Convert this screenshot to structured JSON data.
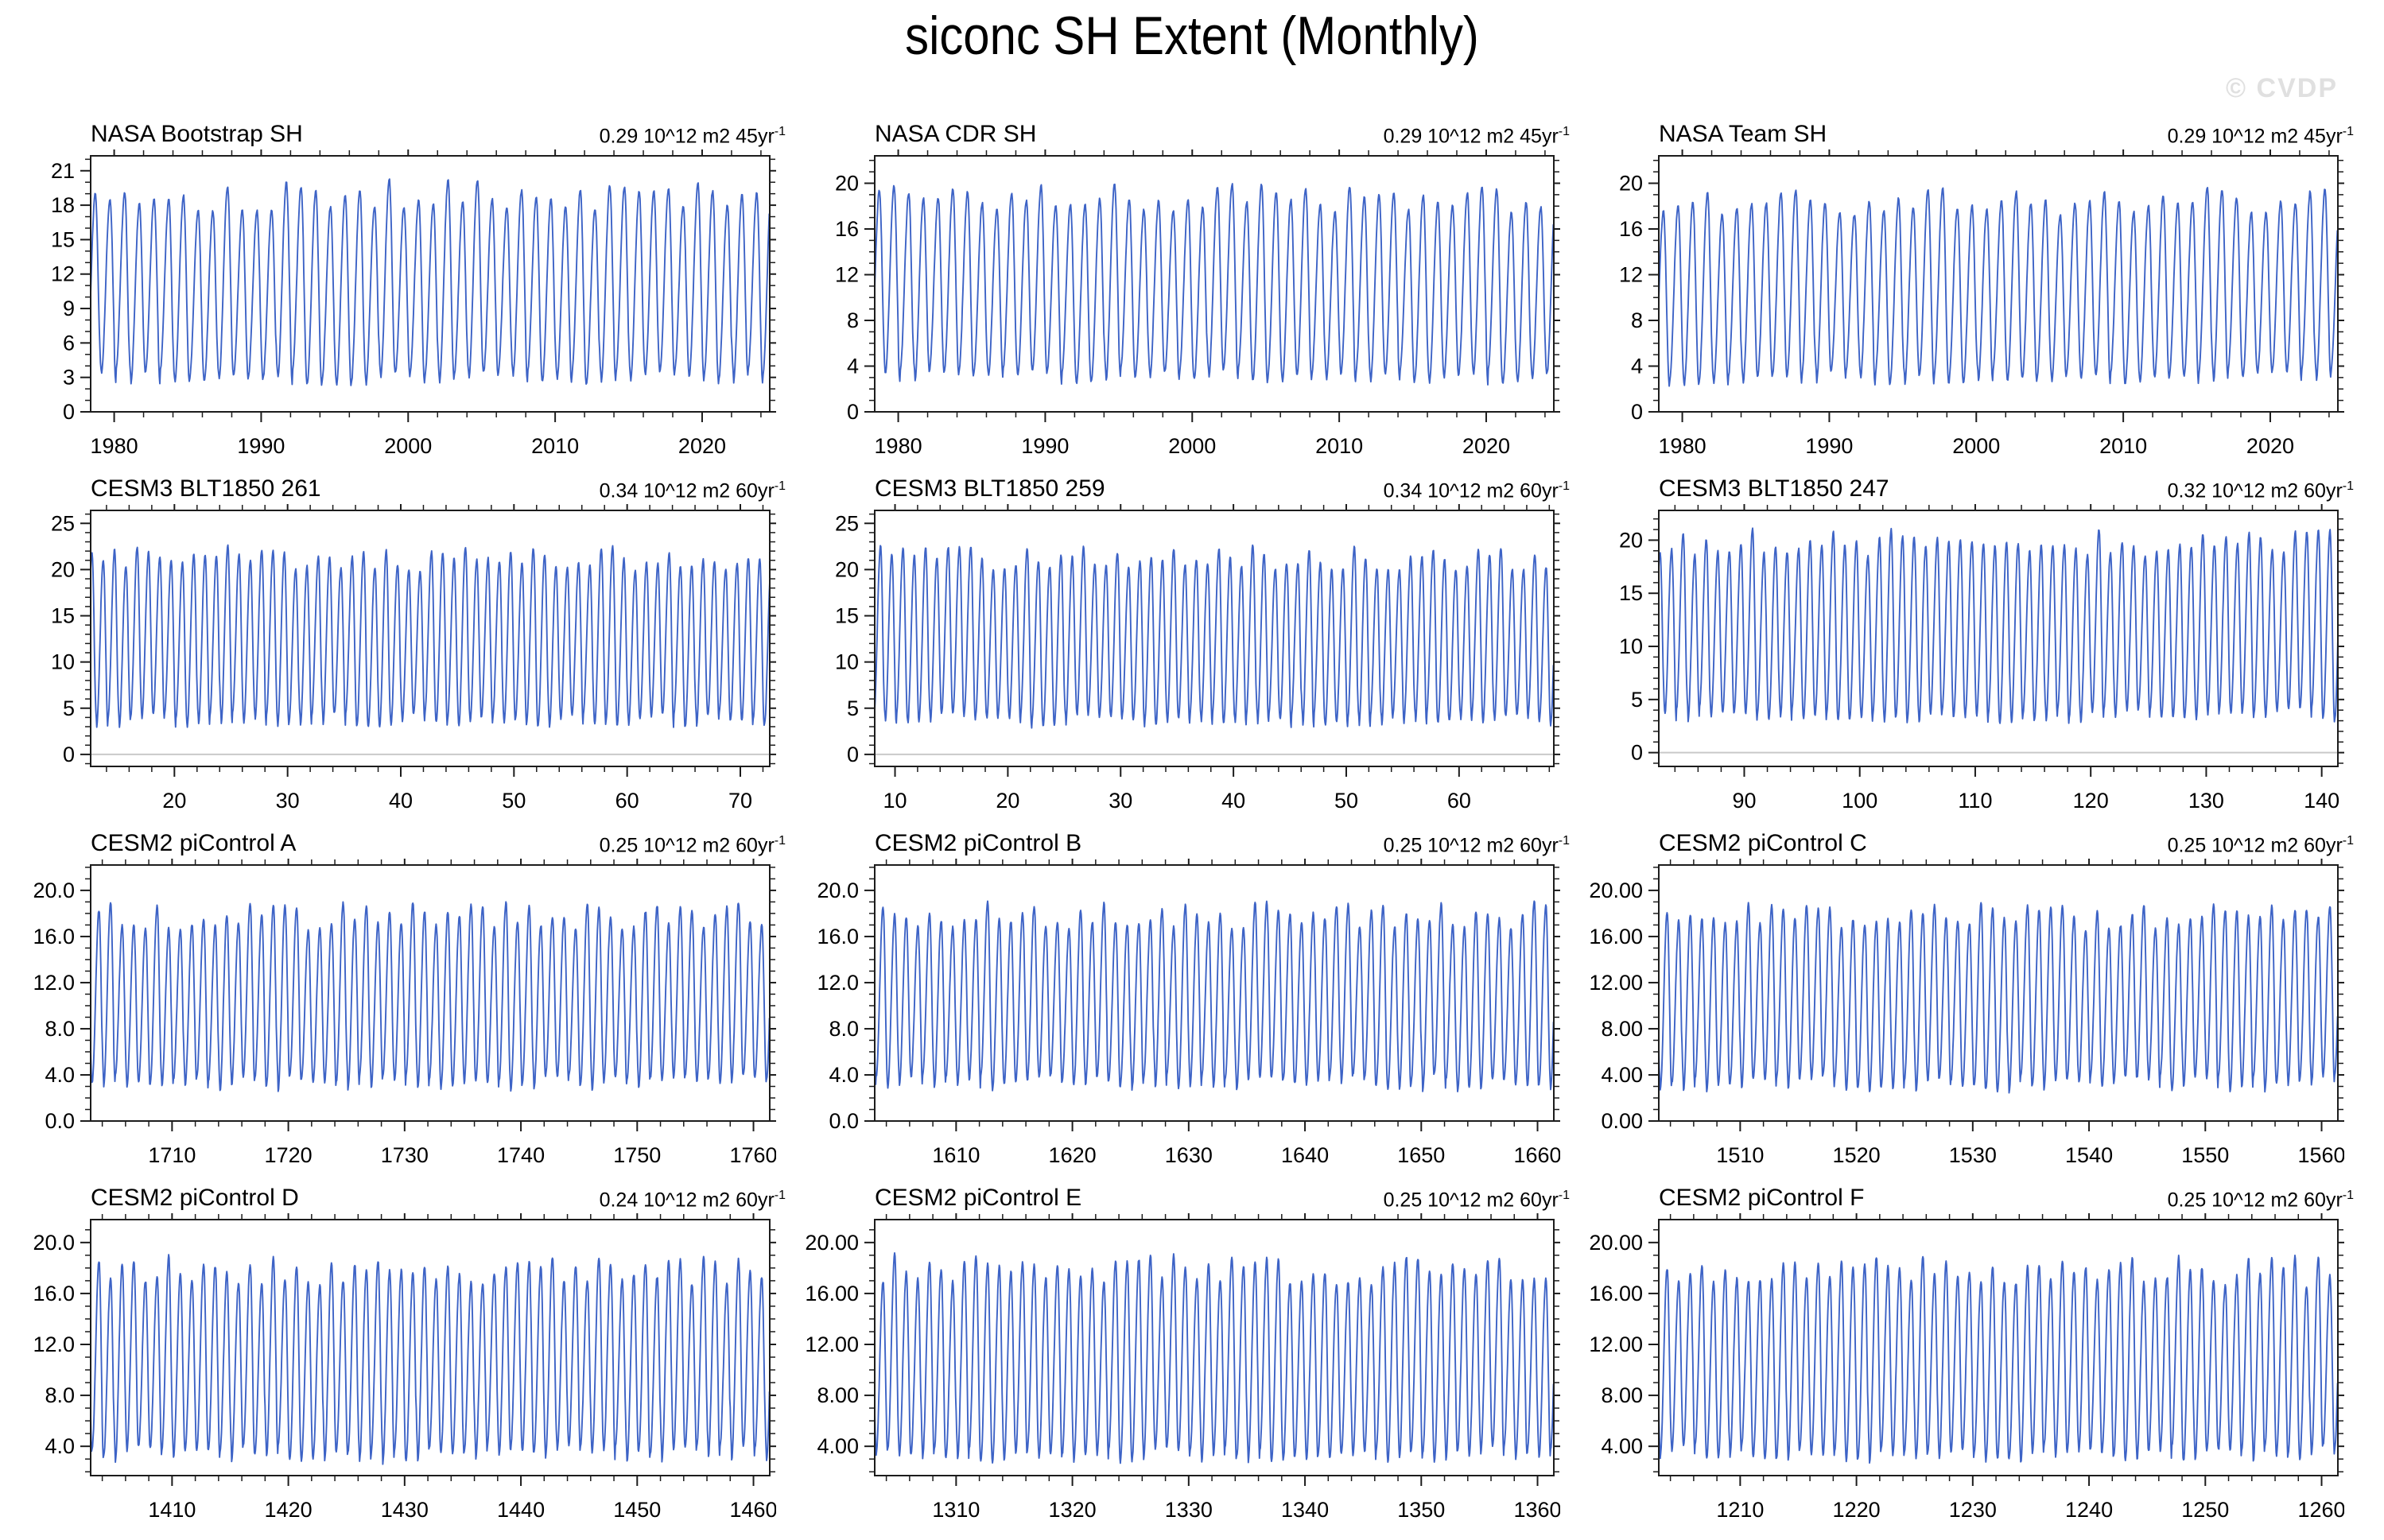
{
  "page": {
    "title": "siconc SH Extent (Monthly)",
    "watermark": "© CVDP"
  },
  "colors": {
    "line": "#3d63c6",
    "axis": "#1c1c1c",
    "zero_line": "#c9c9c9",
    "watermark": "#e0e0e0"
  },
  "chart_data": {
    "type": "line",
    "title": "siconc SH Extent (Monthly)",
    "subtitle": "Monthly Southern Hemisphere sea ice extent seasonal cycle, 12 panels (observations and model runs)",
    "y_unit": "10^12 m2",
    "legend": "none",
    "grid": "off",
    "panels": [
      {
        "title": "NASA Bootstrap SH",
        "trend": {
          "text": "0.29 10^12 m2 45yr",
          "sup": "-1"
        },
        "x": {
          "min": 1978.4,
          "max": 2024.6,
          "ticks": [
            1980,
            1990,
            2000,
            2010,
            2020
          ],
          "tick_labels": [
            "1980",
            "1990",
            "2000",
            "2010",
            "2020"
          ],
          "minor_step": 2
        },
        "y": {
          "min": 0,
          "max": 22.3,
          "ticks": [
            0,
            3,
            6,
            9,
            12,
            15,
            18,
            21
          ],
          "tick_labels": [
            "0",
            "3",
            "6",
            "9",
            "12",
            "15",
            "18",
            "21"
          ],
          "minor_step": 1
        },
        "zero_line": false,
        "series": {
          "name": "siconc SH extent",
          "seasonal_min": 3.0,
          "seasonal_max": 18.9,
          "peak_jitter": 1.5,
          "trough_jitter": 0.7,
          "seed": 101
        }
      },
      {
        "title": "NASA CDR SH",
        "trend": {
          "text": "0.29 10^12 m2 45yr",
          "sup": "-1"
        },
        "x": {
          "min": 1978.4,
          "max": 2024.6,
          "ticks": [
            1980,
            1990,
            2000,
            2010,
            2020
          ],
          "tick_labels": [
            "1980",
            "1990",
            "2000",
            "2010",
            "2020"
          ],
          "minor_step": 2
        },
        "y": {
          "min": 0,
          "max": 22.4,
          "ticks": [
            0,
            4,
            8,
            12,
            16,
            20
          ],
          "tick_labels": [
            "0",
            "4",
            "8",
            "12",
            "16",
            "20"
          ],
          "minor_step": 1
        },
        "zero_line": false,
        "series": {
          "name": "siconc SH extent",
          "seasonal_min": 3.1,
          "seasonal_max": 18.7,
          "peak_jitter": 1.3,
          "trough_jitter": 0.7,
          "seed": 102
        }
      },
      {
        "title": "NASA Team SH",
        "trend": {
          "text": "0.29 10^12 m2 45yr",
          "sup": "-1"
        },
        "x": {
          "min": 1978.4,
          "max": 2024.6,
          "ticks": [
            1980,
            1990,
            2000,
            2010,
            2020
          ],
          "tick_labels": [
            "1980",
            "1990",
            "2000",
            "2010",
            "2020"
          ],
          "minor_step": 2
        },
        "y": {
          "min": 0,
          "max": 22.4,
          "ticks": [
            0,
            4,
            8,
            12,
            16,
            20
          ],
          "tick_labels": [
            "0",
            "4",
            "8",
            "12",
            "16",
            "20"
          ],
          "minor_step": 1
        },
        "zero_line": false,
        "series": {
          "name": "siconc SH extent",
          "seasonal_min": 3.0,
          "seasonal_max": 18.5,
          "peak_jitter": 1.3,
          "trough_jitter": 0.7,
          "seed": 103
        }
      },
      {
        "title": "CESM3 BLT1850 261",
        "trend": {
          "text": "0.34 10^12 m2 60yr",
          "sup": "-1"
        },
        "x": {
          "min": 12.6,
          "max": 72.6,
          "ticks": [
            20,
            30,
            40,
            50,
            60,
            70
          ],
          "tick_labels": [
            "20",
            "30",
            "40",
            "50",
            "60",
            "70"
          ],
          "minor_step": 2
        },
        "y": {
          "min": -1.3,
          "max": 26.4,
          "ticks": [
            0,
            5,
            10,
            15,
            20,
            25
          ],
          "tick_labels": [
            "0",
            "5",
            "10",
            "15",
            "20",
            "25"
          ],
          "minor_step": 1
        },
        "zero_line": true,
        "series": {
          "name": "siconc SH extent",
          "seasonal_min": 3.7,
          "seasonal_max": 21.2,
          "peak_jitter": 1.4,
          "trough_jitter": 0.8,
          "seed": 104
        }
      },
      {
        "title": "CESM3 BLT1850 259",
        "trend": {
          "text": "0.34 10^12 m2 60yr",
          "sup": "-1"
        },
        "x": {
          "min": 8.2,
          "max": 68.4,
          "ticks": [
            10,
            20,
            30,
            40,
            50,
            60
          ],
          "tick_labels": [
            "10",
            "20",
            "30",
            "40",
            "50",
            "60"
          ],
          "minor_step": 2
        },
        "y": {
          "min": -1.3,
          "max": 26.4,
          "ticks": [
            0,
            5,
            10,
            15,
            20,
            25
          ],
          "tick_labels": [
            "0",
            "5",
            "10",
            "15",
            "20",
            "25"
          ],
          "minor_step": 1
        },
        "zero_line": true,
        "series": {
          "name": "siconc SH extent",
          "seasonal_min": 3.7,
          "seasonal_max": 21.3,
          "peak_jitter": 1.4,
          "trough_jitter": 0.8,
          "seed": 105
        }
      },
      {
        "title": "CESM3 BLT1850 247",
        "trend": {
          "text": "0.32 10^12 m2 60yr",
          "sup": "-1"
        },
        "x": {
          "min": 82.6,
          "max": 141.4,
          "ticks": [
            90,
            100,
            110,
            120,
            130,
            140
          ],
          "tick_labels": [
            "90",
            "100",
            "110",
            "120",
            "130",
            "140"
          ],
          "minor_step": 2
        },
        "y": {
          "min": -1.3,
          "max": 22.8,
          "ticks": [
            0,
            5,
            10,
            15,
            20
          ],
          "tick_labels": [
            "0",
            "5",
            "10",
            "15",
            "20"
          ],
          "minor_step": 1
        },
        "zero_line": true,
        "series": {
          "name": "siconc SH extent",
          "seasonal_min": 3.5,
          "seasonal_max": 19.8,
          "peak_jitter": 1.3,
          "trough_jitter": 0.8,
          "seed": 106
        }
      },
      {
        "title": "CESM2 piControl A",
        "trend": {
          "text": "0.25 10^12 m2 60yr",
          "sup": "-1"
        },
        "x": {
          "min": 1703,
          "max": 1761.4,
          "ticks": [
            1710,
            1720,
            1730,
            1740,
            1750,
            1760
          ],
          "tick_labels": [
            "1710",
            "1720",
            "1730",
            "1740",
            "1750",
            "1760"
          ],
          "minor_step": 2
        },
        "y": {
          "min": 0,
          "max": 22.2,
          "ticks": [
            0,
            4,
            8,
            12,
            16,
            20
          ],
          "tick_labels": [
            "0.0",
            "4.0",
            "8.0",
            "12.0",
            "16.0",
            "20.0"
          ],
          "minor_step": 1
        },
        "zero_line": false,
        "series": {
          "name": "siconc SH extent",
          "seasonal_min": 3.3,
          "seasonal_max": 17.8,
          "peak_jitter": 1.2,
          "trough_jitter": 0.8,
          "seed": 107
        }
      },
      {
        "title": "CESM2 piControl B",
        "trend": {
          "text": "0.25 10^12 m2 60yr",
          "sup": "-1"
        },
        "x": {
          "min": 1603,
          "max": 1661.4,
          "ticks": [
            1610,
            1620,
            1630,
            1640,
            1650,
            1660
          ],
          "tick_labels": [
            "1610",
            "1620",
            "1630",
            "1640",
            "1650",
            "1660"
          ],
          "minor_step": 2
        },
        "y": {
          "min": 0,
          "max": 22.2,
          "ticks": [
            0,
            4,
            8,
            12,
            16,
            20
          ],
          "tick_labels": [
            "0.0",
            "4.0",
            "8.0",
            "12.0",
            "16.0",
            "20.0"
          ],
          "minor_step": 1
        },
        "zero_line": false,
        "series": {
          "name": "siconc SH extent",
          "seasonal_min": 3.3,
          "seasonal_max": 17.9,
          "peak_jitter": 1.2,
          "trough_jitter": 0.8,
          "seed": 108
        }
      },
      {
        "title": "CESM2 piControl C",
        "trend": {
          "text": "0.25 10^12 m2 60yr",
          "sup": "-1"
        },
        "x": {
          "min": 1503,
          "max": 1561.4,
          "ticks": [
            1510,
            1520,
            1530,
            1540,
            1550,
            1560
          ],
          "tick_labels": [
            "1510",
            "1520",
            "1530",
            "1540",
            "1550",
            "1560"
          ],
          "minor_step": 2
        },
        "y": {
          "min": 0,
          "max": 22.2,
          "ticks": [
            0,
            4,
            8,
            12,
            16,
            20
          ],
          "tick_labels": [
            "0.00",
            "4.00",
            "8.00",
            "12.00",
            "16.00",
            "20.00"
          ],
          "minor_step": 1
        },
        "zero_line": false,
        "series": {
          "name": "siconc SH extent",
          "seasonal_min": 3.3,
          "seasonal_max": 17.8,
          "peak_jitter": 1.2,
          "trough_jitter": 0.8,
          "seed": 109
        }
      },
      {
        "title": "CESM2 piControl D",
        "trend": {
          "text": "0.24 10^12 m2 60yr",
          "sup": "-1"
        },
        "x": {
          "min": 1403,
          "max": 1461.4,
          "ticks": [
            1410,
            1420,
            1430,
            1440,
            1450,
            1460
          ],
          "tick_labels": [
            "1410",
            "1420",
            "1430",
            "1440",
            "1450",
            "1460"
          ],
          "minor_step": 2
        },
        "y": {
          "min": 1.7,
          "max": 21.8,
          "ticks": [
            4,
            8,
            12,
            16,
            20
          ],
          "tick_labels": [
            "4.0",
            "8.0",
            "12.0",
            "16.0",
            "20.0"
          ],
          "minor_step": 1
        },
        "zero_line": false,
        "series": {
          "name": "siconc SH extent",
          "seasonal_min": 3.4,
          "seasonal_max": 17.8,
          "peak_jitter": 1.2,
          "trough_jitter": 0.7,
          "seed": 110
        }
      },
      {
        "title": "CESM2 piControl E",
        "trend": {
          "text": "0.25 10^12 m2 60yr",
          "sup": "-1"
        },
        "x": {
          "min": 1303,
          "max": 1361.4,
          "ticks": [
            1310,
            1320,
            1330,
            1340,
            1350,
            1360
          ],
          "tick_labels": [
            "1310",
            "1320",
            "1330",
            "1340",
            "1350",
            "1360"
          ],
          "minor_step": 2
        },
        "y": {
          "min": 1.7,
          "max": 21.8,
          "ticks": [
            4,
            8,
            12,
            16,
            20
          ],
          "tick_labels": [
            "4.00",
            "8.00",
            "12.00",
            "16.00",
            "20.00"
          ],
          "minor_step": 1
        },
        "zero_line": false,
        "series": {
          "name": "siconc SH extent",
          "seasonal_min": 3.4,
          "seasonal_max": 17.9,
          "peak_jitter": 1.2,
          "trough_jitter": 0.7,
          "seed": 111
        }
      },
      {
        "title": "CESM2 piControl F",
        "trend": {
          "text": "0.25 10^12 m2 60yr",
          "sup": "-1"
        },
        "x": {
          "min": 1203,
          "max": 1261.4,
          "ticks": [
            1210,
            1220,
            1230,
            1240,
            1250,
            1260
          ],
          "tick_labels": [
            "1210",
            "1220",
            "1230",
            "1240",
            "1250",
            "1260"
          ],
          "minor_step": 2
        },
        "y": {
          "min": 1.7,
          "max": 21.8,
          "ticks": [
            4,
            8,
            12,
            16,
            20
          ],
          "tick_labels": [
            "4.00",
            "8.00",
            "12.00",
            "16.00",
            "20.00"
          ],
          "minor_step": 1
        },
        "zero_line": false,
        "series": {
          "name": "siconc SH extent",
          "seasonal_min": 3.4,
          "seasonal_max": 17.8,
          "peak_jitter": 1.2,
          "trough_jitter": 0.7,
          "seed": 112
        }
      }
    ],
    "layout_hints": {
      "rows": 4,
      "cols": 3,
      "ticks": "outward on all four sides, minor ticks between majors",
      "seasonal_cycle": "annual: minimum ~Feb, maximum ~Sep, slow growth / fast decay"
    }
  }
}
